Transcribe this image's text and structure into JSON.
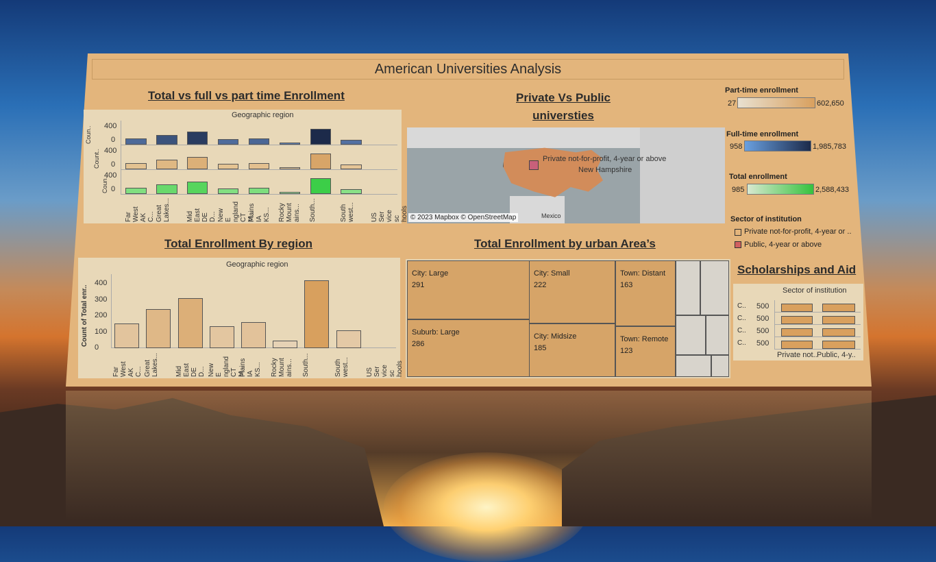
{
  "dashboard": {
    "title": "American  Universities Analysis"
  },
  "sections": {
    "enrollment_types": "Total vs full vs part time Enrollment",
    "private_public": "Private Vs Public universties",
    "by_region": "Total Enrollment By region",
    "by_urban": "Total Enrollment by urban Area’s",
    "scholarships": "Scholarships and Aid"
  },
  "region_chart": {
    "header": "Geographic region",
    "row_labels": [
      "Coun..",
      "Count..",
      "Coun.."
    ],
    "row_ticks": [
      [
        "400",
        "0"
      ],
      [
        "400",
        "0"
      ],
      [
        "400",
        "0"
      ]
    ],
    "x_labels": [
      "Far West AK C...",
      "Great Lakes...",
      "Mid East DE D...",
      "New E ngland CT M...",
      "Plains IA KS...",
      "Rocky Mount ains...",
      "South...",
      "South west...",
      "US Ser vice sc hools"
    ],
    "colors": {
      "part": "#2f4f8a",
      "full": "#d8a66a",
      "total": "#3fcf4a"
    }
  },
  "chart_data": [
    {
      "type": "bar",
      "title": "Total vs full vs part time Enrollment",
      "xlabel": "Geographic region",
      "ylabel": "",
      "ylim": [
        0,
        600
      ],
      "categories": [
        "Far West AK C...",
        "Great Lakes...",
        "Mid East DE D...",
        "New E ngland CT M...",
        "Plains IA KS...",
        "Rocky Mount ains...",
        "South...",
        "South west...",
        "US Ser vice sc hools"
      ],
      "series": [
        {
          "values": [
            150,
            240,
            330,
            140,
            160,
            50,
            400,
            120,
            0
          ]
        },
        {
          "values": [
            150,
            240,
            310,
            140,
            160,
            45,
            410,
            115,
            0
          ]
        },
        {
          "values": [
            150,
            240,
            310,
            140,
            160,
            45,
            410,
            115,
            0
          ]
        }
      ]
    },
    {
      "type": "bar",
      "title": "Total Enrollment By region",
      "xlabel": "Geographic region",
      "ylabel": "Count of Total enr..",
      "ylim": [
        0,
        460
      ],
      "yticks": [
        "400",
        "300",
        "200",
        "100",
        "0"
      ],
      "categories": [
        "Far West AK C...",
        "Great Lakes...",
        "Mid East DE D...",
        "New E ngland CT M...",
        "Plains IA KS...",
        "Rocky Mount ains...",
        "South...",
        "South west...",
        "US Ser vice sc hools"
      ],
      "values": [
        152,
        243,
        310,
        137,
        162,
        46,
        420,
        112,
        0
      ]
    },
    {
      "type": "bar",
      "title": "Scholarships and Aid",
      "xlabel": "Sector of institution",
      "categories": [
        "Private not..",
        "Public, 4-y.."
      ],
      "row_labels": [
        "C..",
        "C..",
        "C..",
        "C.."
      ],
      "row_ticks": [
        "500",
        "500",
        "500",
        "500"
      ],
      "series": [
        {
          "values": [
            530,
            530
          ]
        },
        {
          "values": [
            530,
            530
          ]
        },
        {
          "values": [
            530,
            530
          ]
        },
        {
          "values": [
            530,
            530
          ]
        }
      ]
    }
  ],
  "map": {
    "annotation_1": "Private not-for-profit, 4-year or above",
    "annotation_2": "New Hampshire",
    "copyright": "© 2023 Mapbox © OpenStreetMap",
    "place": "Mexico"
  },
  "legends": {
    "part": {
      "title": "Part-time enrollment",
      "min": "27",
      "max": "602,650",
      "from": "#e8e0d0",
      "to": "#d9a05e"
    },
    "full": {
      "title": "Full-time enrollment",
      "min": "958",
      "max": "1,985,783",
      "from": "#6aa0e0",
      "to": "#1c2a4a"
    },
    "total": {
      "title": "Total  enrollment",
      "min": "985",
      "max": "2,588,433",
      "from": "#d8e8d0",
      "to": "#36c23e"
    },
    "sector": {
      "title": "Sector of institution",
      "items": [
        "Private not-for-profit, 4-year or ..",
        "Public, 4-year or above"
      ],
      "colors": [
        "#e3b57c",
        "#d06060"
      ]
    }
  },
  "treemap": {
    "cells": [
      {
        "label": "City: Large",
        "value": "291"
      },
      {
        "label": "City: Small",
        "value": "222"
      },
      {
        "label": "Town: Distant",
        "value": "163"
      },
      {
        "label": "Suburb: Large",
        "value": "286"
      },
      {
        "label": "City: Midsize",
        "value": "185"
      },
      {
        "label": "Town: Remote",
        "value": "123"
      }
    ]
  },
  "scholarships": {
    "header": "Sector of institution"
  }
}
